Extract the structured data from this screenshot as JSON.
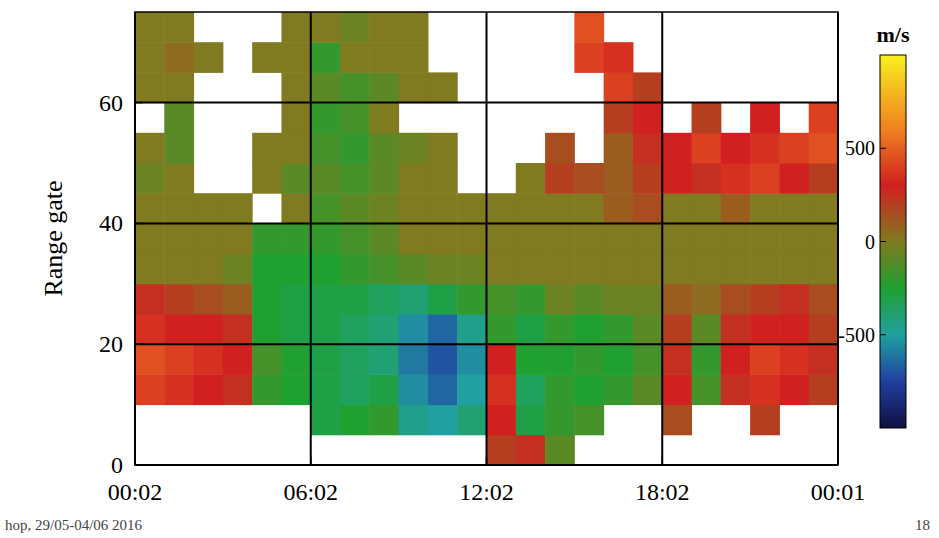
{
  "chart_data": {
    "type": "heatmap",
    "y_label": "Range gate",
    "colorbar_label": "m/s",
    "xlim": [
      0,
      24
    ],
    "xticks": [
      {
        "value": 0,
        "label": "00:02"
      },
      {
        "value": 6,
        "label": "06:02"
      },
      {
        "value": 12,
        "label": "12:02"
      },
      {
        "value": 18,
        "label": "18:02"
      },
      {
        "value": 24,
        "label": "00:01"
      }
    ],
    "ylim": [
      0,
      75
    ],
    "yticks": [
      0,
      20,
      40,
      60
    ],
    "grid": true,
    "x_bins": [
      0,
      1,
      2,
      3,
      4,
      5,
      6,
      7,
      8,
      9,
      10,
      11,
      12,
      13,
      14,
      15,
      16,
      17,
      18,
      19,
      20,
      21,
      22,
      23,
      24
    ],
    "y_bins": [
      0,
      5,
      10,
      15,
      20,
      25,
      30,
      35,
      40,
      45,
      50,
      55,
      60,
      65,
      70,
      75
    ],
    "clim": [
      -1000,
      1000
    ],
    "cticks": [
      -500,
      0,
      500
    ],
    "cells": [
      [
        null,
        null,
        null,
        null,
        null,
        null,
        null,
        null,
        null,
        null,
        null,
        null,
        200,
        250,
        -100,
        null,
        null,
        null,
        null,
        null,
        null,
        null,
        null,
        null
      ],
      [
        null,
        null,
        null,
        null,
        null,
        null,
        -300,
        -250,
        -200,
        -450,
        -500,
        -400,
        300,
        -300,
        -200,
        -150,
        null,
        null,
        150,
        null,
        null,
        200,
        null,
        null
      ],
      [
        400,
        350,
        300,
        250,
        -200,
        -250,
        -300,
        -350,
        -300,
        -550,
        -650,
        -500,
        350,
        -350,
        -200,
        -250,
        -200,
        -100,
        300,
        -150,
        250,
        350,
        300,
        200
      ],
      [
        450,
        400,
        350,
        300,
        -150,
        -250,
        -300,
        -350,
        -400,
        -600,
        -700,
        -550,
        300,
        -250,
        -250,
        -200,
        -250,
        -150,
        250,
        -200,
        300,
        400,
        350,
        250
      ],
      [
        350,
        300,
        300,
        250,
        -250,
        -300,
        -300,
        -350,
        -400,
        -550,
        -650,
        -450,
        -200,
        -300,
        -200,
        -250,
        -200,
        -100,
        200,
        -100,
        250,
        300,
        300,
        200
      ],
      [
        250,
        200,
        150,
        100,
        -250,
        -300,
        -300,
        -300,
        -350,
        -400,
        -300,
        -200,
        -150,
        -200,
        -50,
        -100,
        -50,
        -50,
        100,
        50,
        150,
        200,
        250,
        150
      ],
      [
        0,
        0,
        0,
        -50,
        -250,
        -250,
        -250,
        -200,
        -150,
        -100,
        -50,
        -50,
        0,
        0,
        0,
        0,
        0,
        0,
        0,
        0,
        0,
        0,
        0,
        0
      ],
      [
        0,
        0,
        0,
        0,
        -200,
        -200,
        -200,
        -150,
        -100,
        0,
        0,
        0,
        0,
        0,
        0,
        0,
        0,
        0,
        0,
        0,
        0,
        0,
        0,
        0
      ],
      [
        0,
        0,
        0,
        0,
        null,
        0,
        -150,
        -100,
        -50,
        0,
        0,
        0,
        0,
        0,
        0,
        0,
        100,
        150,
        0,
        0,
        100,
        0,
        0,
        0
      ],
      [
        -50,
        0,
        null,
        null,
        0,
        -100,
        -100,
        -150,
        -100,
        0,
        0,
        null,
        null,
        0,
        200,
        150,
        100,
        200,
        300,
        250,
        350,
        400,
        300,
        200
      ],
      [
        0,
        -100,
        null,
        null,
        0,
        0,
        -150,
        -200,
        -100,
        -50,
        0,
        null,
        null,
        null,
        150,
        null,
        100,
        250,
        300,
        400,
        300,
        350,
        400,
        450
      ],
      [
        null,
        -100,
        null,
        null,
        null,
        0,
        -200,
        -150,
        0,
        null,
        null,
        null,
        null,
        null,
        null,
        null,
        200,
        300,
        null,
        200,
        null,
        300,
        null,
        400
      ],
      [
        0,
        0,
        null,
        null,
        null,
        0,
        -100,
        -150,
        -100,
        0,
        0,
        null,
        null,
        null,
        null,
        null,
        400,
        200,
        null,
        null,
        null,
        null,
        null,
        null
      ],
      [
        0,
        50,
        0,
        null,
        0,
        0,
        -200,
        0,
        0,
        0,
        null,
        null,
        null,
        null,
        null,
        400,
        350,
        null,
        null,
        null,
        null,
        null,
        null,
        null
      ],
      [
        0,
        0,
        null,
        null,
        null,
        0,
        0,
        -50,
        0,
        0,
        null,
        null,
        null,
        null,
        null,
        450,
        null,
        null,
        null,
        null,
        null,
        null,
        null,
        null
      ]
    ],
    "annotations": [
      "hop, 29/05-04/06 2016",
      "18"
    ]
  }
}
